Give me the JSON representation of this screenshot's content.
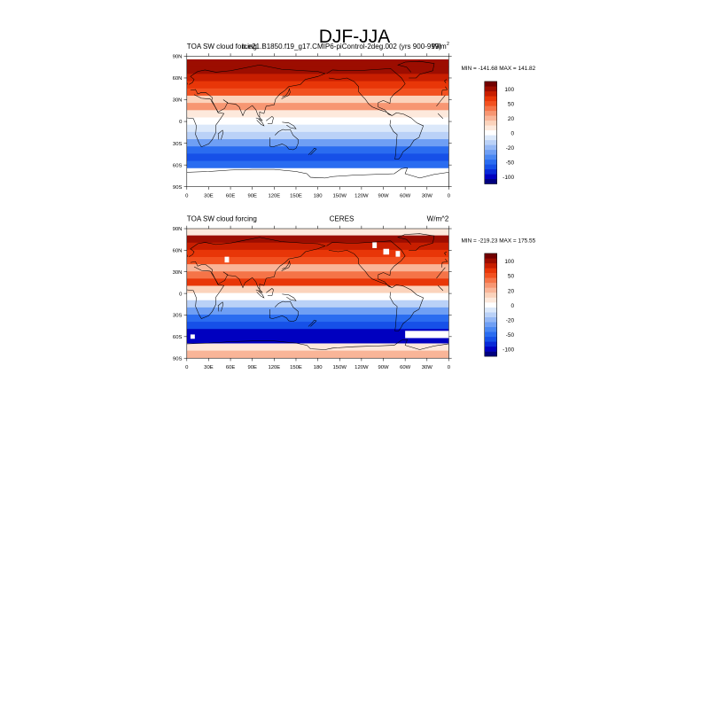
{
  "page": {
    "title": "DJF-JJA"
  },
  "panels": [
    {
      "left_title": "TOA SW cloud forcing",
      "center_title": "b.e21.B1850.f19_g17.CMIP6-piControl-2deg.002 (yrs 900-999)",
      "units": "W/m",
      "units_superscript": "2",
      "stats": "MIN = -141.68  MAX = 141.82"
    },
    {
      "left_title": "TOA SW cloud forcing",
      "center_title": "CERES",
      "units": "W/m^2",
      "units_superscript": "",
      "stats": "MIN = -219.23  MAX = 175.55"
    }
  ],
  "chart_data": [
    {
      "type": "heatmap",
      "title": "DJF-JJA",
      "subtitle": "b.e21.B1850.f19_g17.CMIP6-piControl-2deg.002 (yrs 900-999)",
      "field": "TOA SW cloud forcing",
      "units": "W/m^2",
      "min": -141.68,
      "max": 141.82,
      "xlim": [
        0,
        360
      ],
      "ylim": [
        -90,
        90
      ],
      "x_ticks": [
        "0",
        "30E",
        "60E",
        "90E",
        "120E",
        "150E",
        "180",
        "150W",
        "120W",
        "90W",
        "60W",
        "30W",
        "0"
      ],
      "y_ticks": [
        "90S",
        "60S",
        "30S",
        "0",
        "30N",
        "60N",
        "90N"
      ],
      "colorbar_levels": [
        -140,
        -120,
        -100,
        -80,
        -50,
        -40,
        -30,
        -20,
        -10,
        -5,
        0,
        5,
        10,
        20,
        30,
        40,
        50,
        80,
        100,
        120,
        140
      ],
      "colorbar_labels": [
        "100",
        "50",
        "20",
        "0",
        "-20",
        "-50",
        "-100"
      ],
      "zonal_band_values": [
        {
          "lat": 80,
          "value": 105
        },
        {
          "lat": 70,
          "value": 115
        },
        {
          "lat": 60,
          "value": 85
        },
        {
          "lat": 50,
          "value": 65
        },
        {
          "lat": 40,
          "value": 40
        },
        {
          "lat": 30,
          "value": 8
        },
        {
          "lat": 20,
          "value": 25
        },
        {
          "lat": 10,
          "value": 4
        },
        {
          "lat": 0,
          "value": -3
        },
        {
          "lat": -10,
          "value": -8
        },
        {
          "lat": -20,
          "value": -18
        },
        {
          "lat": -30,
          "value": -35
        },
        {
          "lat": -40,
          "value": -70
        },
        {
          "lat": -50,
          "value": -95
        },
        {
          "lat": -60,
          "value": -70
        },
        {
          "lat": -70,
          "value": -5
        },
        {
          "lat": -80,
          "value": -3
        }
      ]
    },
    {
      "type": "heatmap",
      "title": "DJF-JJA",
      "subtitle": "CERES",
      "field": "TOA SW cloud forcing",
      "units": "W/m^2",
      "min": -219.23,
      "max": 175.55,
      "xlim": [
        0,
        360
      ],
      "ylim": [
        -90,
        90
      ],
      "x_ticks": [
        "0",
        "30E",
        "60E",
        "90E",
        "120E",
        "150E",
        "180",
        "150W",
        "120W",
        "90W",
        "60W",
        "30W",
        "0"
      ],
      "y_ticks": [
        "90S",
        "60S",
        "30S",
        "0",
        "30N",
        "60N",
        "90N"
      ],
      "colorbar_levels": [
        -140,
        -120,
        -100,
        -80,
        -50,
        -40,
        -30,
        -20,
        -10,
        -5,
        0,
        5,
        10,
        20,
        30,
        40,
        50,
        80,
        100,
        120,
        140
      ],
      "colorbar_labels": [
        "100",
        "50",
        "20",
        "0",
        "-20",
        "-50",
        "-100"
      ],
      "zonal_band_values": [
        {
          "lat": 85,
          "value": 3
        },
        {
          "lat": 75,
          "value": 110
        },
        {
          "lat": 65,
          "value": 90
        },
        {
          "lat": 55,
          "value": 70
        },
        {
          "lat": 45,
          "value": 45
        },
        {
          "lat": 35,
          "value": 10
        },
        {
          "lat": 25,
          "value": 30
        },
        {
          "lat": 15,
          "value": 55
        },
        {
          "lat": 5,
          "value": 5
        },
        {
          "lat": -5,
          "value": -5
        },
        {
          "lat": -15,
          "value": -20
        },
        {
          "lat": -25,
          "value": -35
        },
        {
          "lat": -35,
          "value": -55
        },
        {
          "lat": -45,
          "value": -90
        },
        {
          "lat": -55,
          "value": -125
        },
        {
          "lat": -65,
          "value": -135
        },
        {
          "lat": -75,
          "value": 3
        },
        {
          "lat": -85,
          "value": 10
        }
      ]
    }
  ],
  "colors": {
    "palette": [
      "#00007f",
      "#0000c0",
      "#0829d8",
      "#1650e8",
      "#2a6cf0",
      "#4a87f2",
      "#6f9ff4",
      "#95b8f5",
      "#bad1f7",
      "#dbe8fa",
      "#ffffff",
      "#fde9dc",
      "#fbd3bc",
      "#f9b598",
      "#f79672",
      "#f57448",
      "#f25120",
      "#e83608",
      "#c81e00",
      "#9c0d00",
      "#720000"
    ],
    "coast": "#000000",
    "missing": "#ffffff"
  }
}
